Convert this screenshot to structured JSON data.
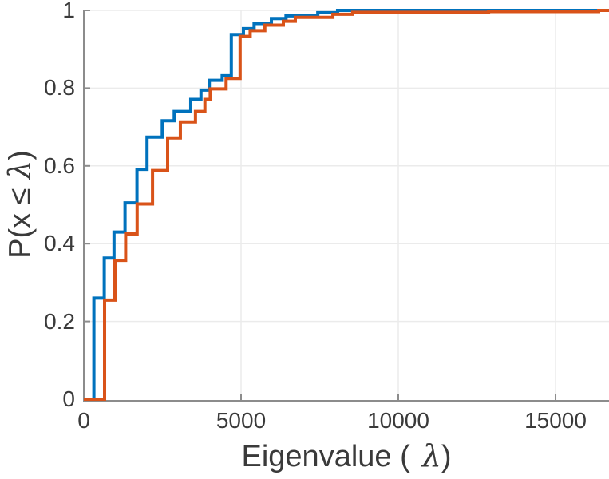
{
  "figure": {
    "background": "#ffffff",
    "labels": {
      "xlabel_prefix": "Eigenvalue (",
      "xlabel_lambda": "λ",
      "xlabel_suffix": ")",
      "ylabel_prefix": "P(x ≤ ",
      "ylabel_lambda": "λ",
      "ylabel_suffix": ")"
    }
  },
  "chart_data": {
    "type": "line",
    "subtype": "ecdf-stairs",
    "title": "",
    "xlabel": "Eigenvalue ( λ)",
    "ylabel": "P(x ≤ λ)",
    "xlim": [
      0,
      16700
    ],
    "ylim": [
      0,
      1
    ],
    "x_ticks": [
      0,
      5000,
      10000,
      15000
    ],
    "x_tick_labels": [
      "0",
      "5000",
      "10000",
      "15000"
    ],
    "y_ticks": [
      0,
      0.2,
      0.4,
      0.6,
      0.8,
      1
    ],
    "y_tick_labels": [
      "0",
      "0.2",
      "0.4",
      "0.6",
      "0.8",
      "1"
    ],
    "grid": true,
    "legend": "none",
    "axis_color": "#8c8c8c",
    "grid_color": "#ebebeb",
    "tick_label_color": "#3a3a3a",
    "series": [
      {
        "name": "ecdf-blue",
        "color": "#0072BD",
        "line_width": 4,
        "steps": [
          [
            320,
            0.26
          ],
          [
            650,
            0.363
          ],
          [
            960,
            0.43
          ],
          [
            1310,
            0.505
          ],
          [
            1690,
            0.591
          ],
          [
            2010,
            0.674
          ],
          [
            2495,
            0.716
          ],
          [
            2875,
            0.74
          ],
          [
            3400,
            0.771
          ],
          [
            3725,
            0.795
          ],
          [
            3990,
            0.82
          ],
          [
            4400,
            0.832
          ],
          [
            4690,
            0.938
          ],
          [
            5075,
            0.953
          ],
          [
            5415,
            0.966
          ],
          [
            5965,
            0.979
          ],
          [
            6430,
            0.986
          ],
          [
            7440,
            0.994
          ],
          [
            8070,
            1.0
          ]
        ]
      },
      {
        "name": "ecdf-orange",
        "color": "#D95319",
        "line_width": 4,
        "steps": [
          [
            660,
            0.255
          ],
          [
            990,
            0.357
          ],
          [
            1330,
            0.425
          ],
          [
            1695,
            0.502
          ],
          [
            2185,
            0.588
          ],
          [
            2665,
            0.672
          ],
          [
            3070,
            0.713
          ],
          [
            3550,
            0.74
          ],
          [
            3850,
            0.771
          ],
          [
            4020,
            0.798
          ],
          [
            4525,
            0.825
          ],
          [
            4970,
            0.933
          ],
          [
            5290,
            0.948
          ],
          [
            5755,
            0.962
          ],
          [
            6345,
            0.972
          ],
          [
            6725,
            0.982
          ],
          [
            7920,
            0.99
          ],
          [
            8550,
            0.995
          ],
          [
            12870,
            0.997
          ],
          [
            16370,
            1.0
          ]
        ]
      }
    ]
  }
}
